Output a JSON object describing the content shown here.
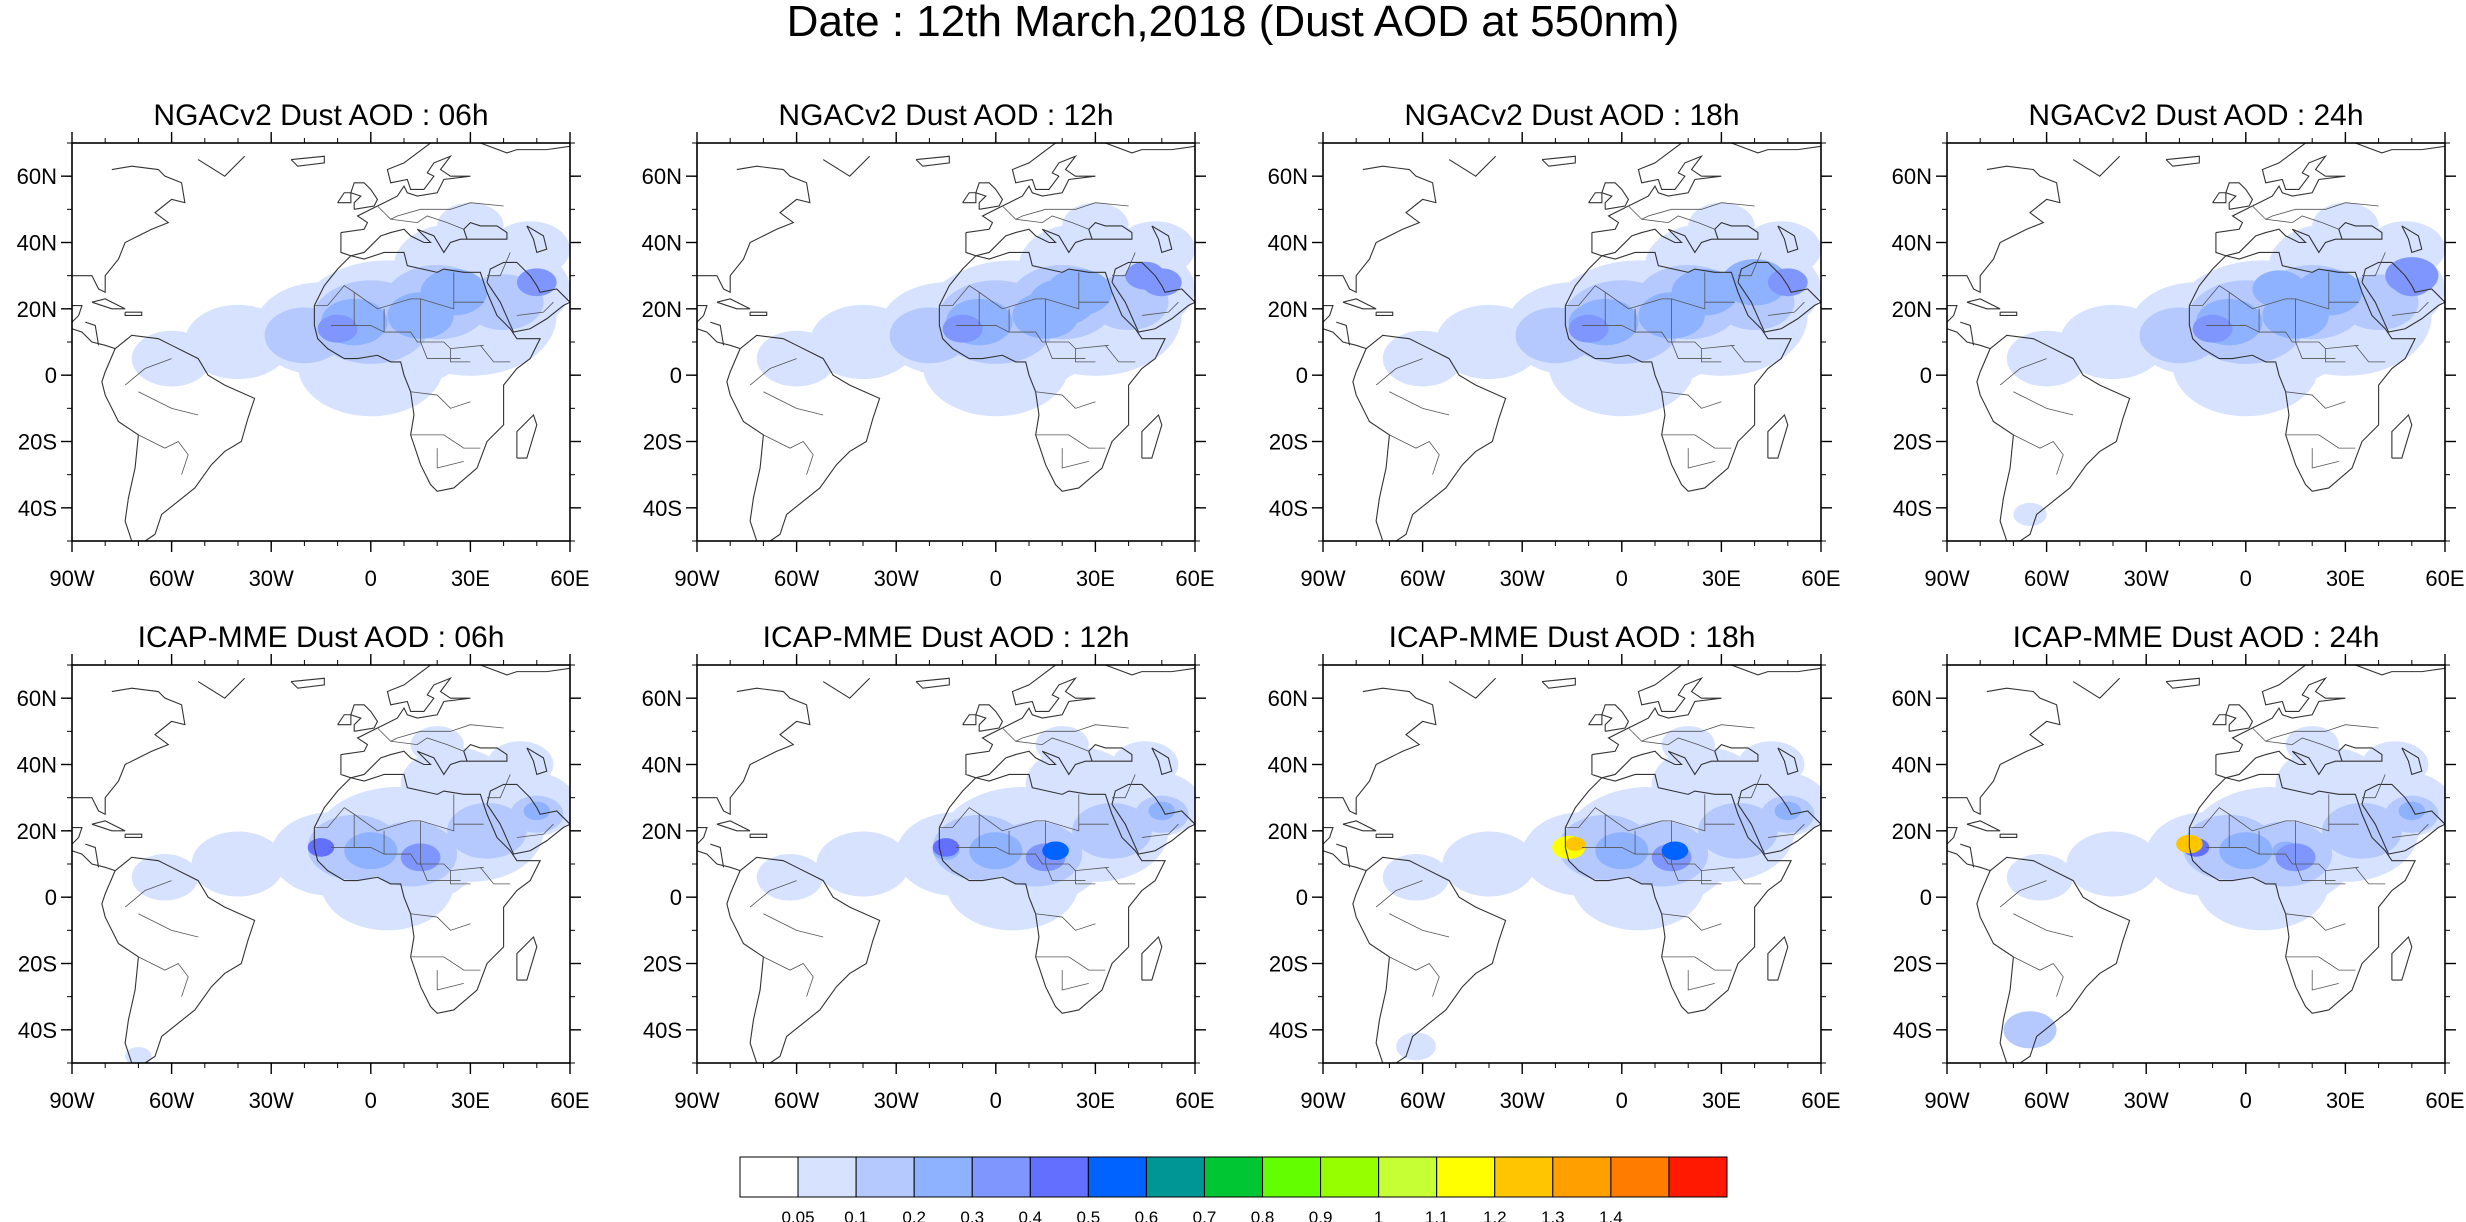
{
  "title": "Date : 12th March,2018 (Dust AOD at 550nm)",
  "axes": {
    "x_ticks": [
      {
        "value": -90,
        "label": "90W"
      },
      {
        "value": -60,
        "label": "60W"
      },
      {
        "value": -30,
        "label": "30W"
      },
      {
        "value": 0,
        "label": "0"
      },
      {
        "value": 30,
        "label": "30E"
      },
      {
        "value": 60,
        "label": "60E"
      }
    ],
    "y_ticks": [
      {
        "value": 60,
        "label": "60N"
      },
      {
        "value": 40,
        "label": "40N"
      },
      {
        "value": 20,
        "label": "20N"
      },
      {
        "value": 0,
        "label": "0"
      },
      {
        "value": -20,
        "label": "20S"
      },
      {
        "value": -40,
        "label": "40S"
      }
    ],
    "lon_range": [
      -90,
      60
    ],
    "lat_range": [
      -50,
      70
    ]
  },
  "panels": [
    {
      "title": "NGACv2 Dust AOD : 06h",
      "model": "NGACv2",
      "forecast_hour": "06h"
    },
    {
      "title": "NGACv2 Dust AOD : 12h",
      "model": "NGACv2",
      "forecast_hour": "12h"
    },
    {
      "title": "NGACv2 Dust AOD : 18h",
      "model": "NGACv2",
      "forecast_hour": "18h"
    },
    {
      "title": "NGACv2 Dust AOD : 24h",
      "model": "NGACv2",
      "forecast_hour": "24h"
    },
    {
      "title": "ICAP-MME Dust AOD : 06h",
      "model": "ICAP-MME",
      "forecast_hour": "06h"
    },
    {
      "title": "ICAP-MME Dust AOD : 12h",
      "model": "ICAP-MME",
      "forecast_hour": "12h"
    },
    {
      "title": "ICAP-MME Dust AOD : 18h",
      "model": "ICAP-MME",
      "forecast_hour": "18h"
    },
    {
      "title": "ICAP-MME Dust AOD : 24h",
      "model": "ICAP-MME",
      "forecast_hour": "24h"
    }
  ],
  "colorbar": {
    "colors": [
      "#ffffff",
      "#d6e2ff",
      "#b5c9ff",
      "#8eb2ff",
      "#7f96ff",
      "#6370ff",
      "#0063ff",
      "#009696",
      "#00c633",
      "#63ff00",
      "#96ff00",
      "#c6ff33",
      "#ffff00",
      "#ffc600",
      "#ffa000",
      "#ff7c00",
      "#ff1900"
    ],
    "labels": [
      "0.05",
      "0.1",
      "0.2",
      "0.3",
      "0.4",
      "0.5",
      "0.6",
      "0.7",
      "0.8",
      "0.9",
      "1",
      "1.1",
      "1.2",
      "1.3",
      "1.4"
    ]
  }
}
